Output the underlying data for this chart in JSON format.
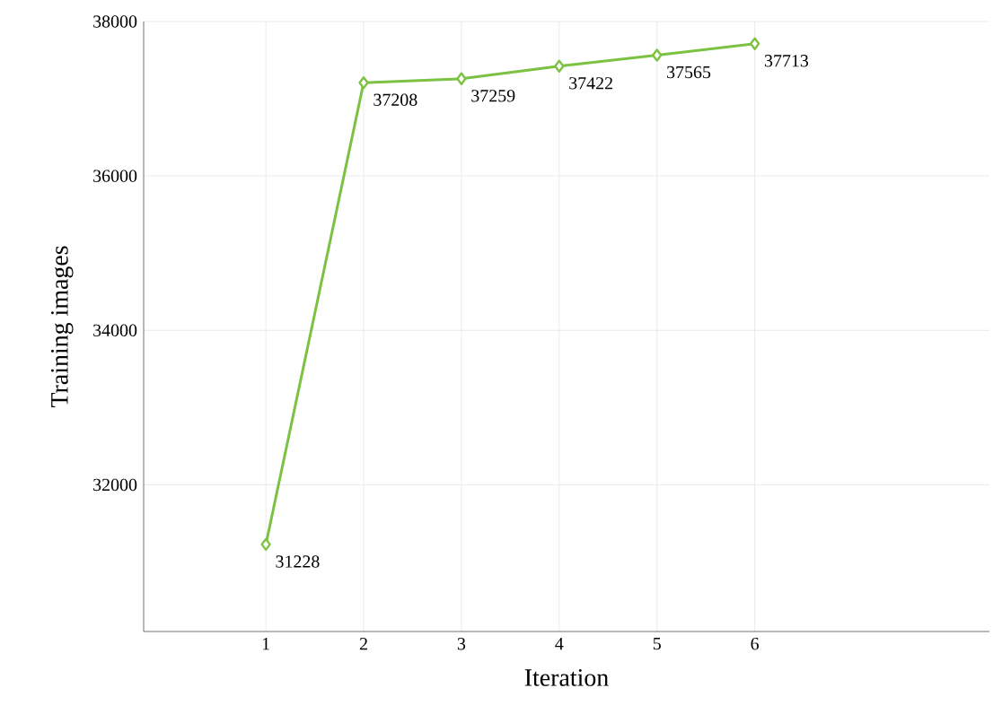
{
  "chart_data": {
    "type": "line",
    "xlabel": "Iteration",
    "ylabel": "Training images",
    "x": [
      1,
      2,
      3,
      4,
      5,
      6
    ],
    "series": [
      {
        "color": "#7cc242",
        "values": [
          31228,
          37208,
          37259,
          37422,
          37565,
          37713
        ]
      }
    ],
    "xlim": [
      -0.25,
      8.4
    ],
    "xticks": [
      1,
      2,
      3,
      4,
      5,
      6
    ],
    "ylim": [
      30100,
      38000
    ],
    "yticks": [
      32000,
      34000,
      36000,
      38000
    ],
    "grid": true,
    "marker": "diamond",
    "line_style": "solid",
    "data_labels": true
  }
}
